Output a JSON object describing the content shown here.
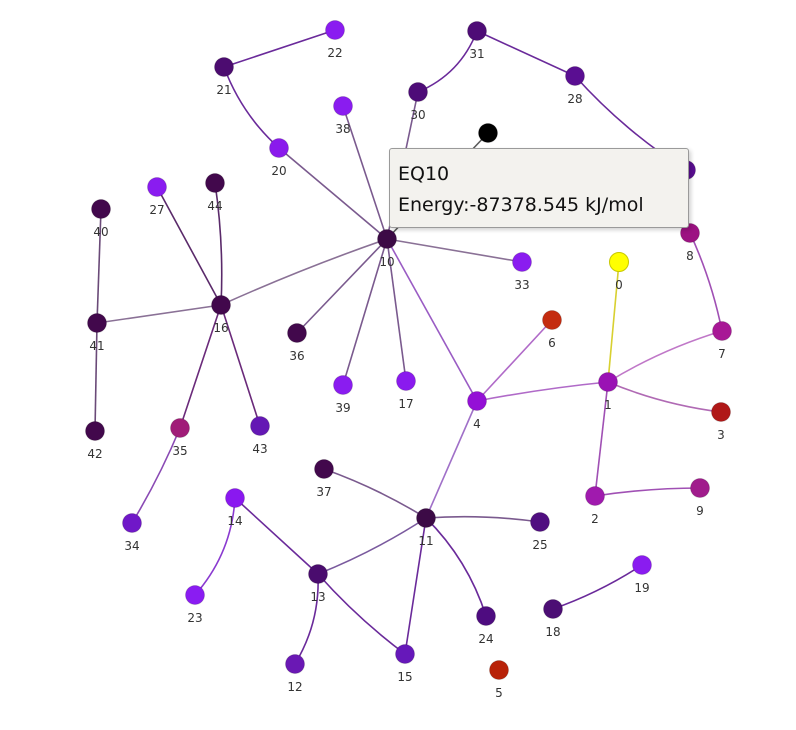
{
  "tooltip": {
    "title": "EQ10",
    "energy": "Energy:-87378.545 kJ/mol"
  },
  "graph": {
    "nodes": [
      {
        "id": 0,
        "label": "0",
        "color": "#ffff00",
        "stroke": "#c8c800"
      },
      {
        "id": 1,
        "label": "1",
        "color": "#9a12b4"
      },
      {
        "id": 2,
        "label": "2",
        "color": "#a01aae"
      },
      {
        "id": 3,
        "label": "3",
        "color": "#b01818"
      },
      {
        "id": 4,
        "label": "4",
        "color": "#9410d6"
      },
      {
        "id": 5,
        "label": "5",
        "color": "#b82208"
      },
      {
        "id": 6,
        "label": "6",
        "color": "#c42c10"
      },
      {
        "id": 7,
        "label": "7",
        "color": "#a81896"
      },
      {
        "id": 8,
        "label": "8",
        "color": "#9c1282"
      },
      {
        "id": 9,
        "label": "9",
        "color": "#a01c8c"
      },
      {
        "id": 10,
        "label": "10",
        "color": "#3c0a46"
      },
      {
        "id": 11,
        "label": "11",
        "color": "#3c0a46"
      },
      {
        "id": 12,
        "label": "12",
        "color": "#6a18b4"
      },
      {
        "id": 13,
        "label": "13",
        "color": "#4a0c6e"
      },
      {
        "id": 14,
        "label": "14",
        "color": "#8a18f0"
      },
      {
        "id": 15,
        "label": "15",
        "color": "#6618ba"
      },
      {
        "id": 16,
        "label": "16",
        "color": "#42084c"
      },
      {
        "id": 17,
        "label": "17",
        "color": "#8a1aee"
      },
      {
        "id": 18,
        "label": "18",
        "color": "#4c0e74"
      },
      {
        "id": 19,
        "label": "19",
        "color": "#8a1cf0"
      },
      {
        "id": 20,
        "label": "20",
        "color": "#8a1aec"
      },
      {
        "id": 21,
        "label": "21",
        "color": "#4c0c70"
      },
      {
        "id": 22,
        "label": "22",
        "color": "#8a1cf0"
      },
      {
        "id": 23,
        "label": "23",
        "color": "#8a1cf2"
      },
      {
        "id": 24,
        "label": "24",
        "color": "#4e0c80"
      },
      {
        "id": 25,
        "label": "25",
        "color": "#500e80"
      },
      {
        "id": 26,
        "label": "",
        "color": "#000000"
      },
      {
        "id": 27,
        "label": "27",
        "color": "#8a1cf0"
      },
      {
        "id": 28,
        "label": "28",
        "color": "#5a0e92"
      },
      {
        "id": 29,
        "label": "",
        "color": "#5a0e92"
      },
      {
        "id": 30,
        "label": "30",
        "color": "#4e0c78"
      },
      {
        "id": 31,
        "label": "31",
        "color": "#4e0c76"
      },
      {
        "id": 33,
        "label": "33",
        "color": "#8a1cf0"
      },
      {
        "id": 34,
        "label": "34",
        "color": "#7018c8"
      },
      {
        "id": 35,
        "label": "35",
        "color": "#a01c78"
      },
      {
        "id": 36,
        "label": "36",
        "color": "#42084c"
      },
      {
        "id": 37,
        "label": "37",
        "color": "#42084c"
      },
      {
        "id": 38,
        "label": "38",
        "color": "#8a1cf0"
      },
      {
        "id": 39,
        "label": "39",
        "color": "#8a1cf0"
      },
      {
        "id": 40,
        "label": "40",
        "color": "#42084c"
      },
      {
        "id": 41,
        "label": "41",
        "color": "#42084c"
      },
      {
        "id": 42,
        "label": "42",
        "color": "#42084c"
      },
      {
        "id": 43,
        "label": "43",
        "color": "#6418b4"
      },
      {
        "id": 44,
        "label": "44",
        "color": "#42084c"
      }
    ],
    "edges": [
      {
        "source": 22,
        "target": 21,
        "color": "#6a2a9a"
      },
      {
        "source": 21,
        "target": 20,
        "color": "#6a2a9a"
      },
      {
        "source": 20,
        "target": 10,
        "color": "#7a5a8e"
      },
      {
        "source": 31,
        "target": 30,
        "color": "#6a2a9a"
      },
      {
        "source": 31,
        "target": 28,
        "color": "#6a2a9a"
      },
      {
        "source": 30,
        "target": 10,
        "color": "#7a5a8e"
      },
      {
        "source": 28,
        "target": 29,
        "color": "#6a2a9a"
      },
      {
        "source": 26,
        "target": 10,
        "color": "#5a5a5a"
      },
      {
        "source": 38,
        "target": 10,
        "color": "#7a5a8e"
      },
      {
        "source": 16,
        "target": 10,
        "color": "#8a7196"
      },
      {
        "source": 10,
        "target": 36,
        "color": "#7a5a8e"
      },
      {
        "source": 10,
        "target": 39,
        "color": "#7a5a8e"
      },
      {
        "source": 10,
        "target": 17,
        "color": "#7a5a8e"
      },
      {
        "source": 10,
        "target": 33,
        "color": "#8a7196"
      },
      {
        "source": 10,
        "target": 4,
        "color": "#9a5cc4"
      },
      {
        "source": 27,
        "target": 16,
        "color": "#5a2a6a"
      },
      {
        "source": 44,
        "target": 16,
        "color": "#5a2a6a"
      },
      {
        "source": 41,
        "target": 16,
        "color": "#8a7196"
      },
      {
        "source": 40,
        "target": 41,
        "color": "#6a4a78"
      },
      {
        "source": 41,
        "target": 42,
        "color": "#6a4a78"
      },
      {
        "source": 16,
        "target": 35,
        "color": "#6a2a7a"
      },
      {
        "source": 16,
        "target": 43,
        "color": "#6a2a7a"
      },
      {
        "source": 35,
        "target": 34,
        "color": "#8a4ab4"
      },
      {
        "source": 4,
        "target": 6,
        "color": "#b06ac8"
      },
      {
        "source": 4,
        "target": 1,
        "color": "#b06ac8"
      },
      {
        "source": 4,
        "target": 11,
        "color": "#a070c8"
      },
      {
        "source": 0,
        "target": 1,
        "color": "#d8d030"
      },
      {
        "source": 1,
        "target": 7,
        "color": "#c078c8"
      },
      {
        "source": 1,
        "target": 3,
        "color": "#b06ab4"
      },
      {
        "source": 1,
        "target": 2,
        "color": "#a050b4"
      },
      {
        "source": 2,
        "target": 9,
        "color": "#a050b4"
      },
      {
        "source": 8,
        "target": 7,
        "color": "#a050b4"
      },
      {
        "source": 37,
        "target": 11,
        "color": "#7a5a8e"
      },
      {
        "source": 11,
        "target": 25,
        "color": "#7a5a8e"
      },
      {
        "source": 11,
        "target": 24,
        "color": "#6a2a9a"
      },
      {
        "source": 11,
        "target": 15,
        "color": "#6a2a9a"
      },
      {
        "source": 11,
        "target": 13,
        "color": "#7a5a9e"
      },
      {
        "source": 14,
        "target": 13,
        "color": "#6a2a9a"
      },
      {
        "source": 14,
        "target": 23,
        "color": "#8a3ad0"
      },
      {
        "source": 13,
        "target": 12,
        "color": "#6a2a9a"
      },
      {
        "source": 13,
        "target": 15,
        "color": "#6a2a9a"
      },
      {
        "source": 18,
        "target": 19,
        "color": "#6a2a9a"
      }
    ]
  }
}
